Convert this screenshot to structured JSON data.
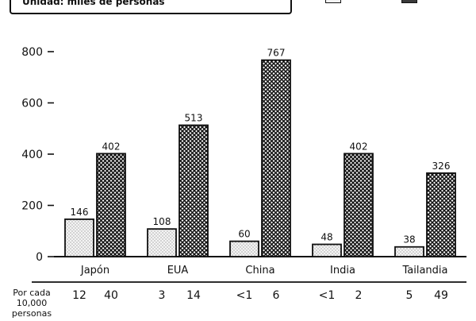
{
  "header": {
    "unit_label": "Unidad: miles de personas"
  },
  "colors": {
    "series_1_fill": "#f2f2f2",
    "series_2_fill": "#1a1a1a",
    "stroke": "#111111"
  },
  "chart_data": {
    "type": "bar",
    "categories": [
      "Japón",
      "EUA",
      "China",
      "India",
      "Tailandia"
    ],
    "series": [
      {
        "pattern": "dots",
        "values": [
          146,
          108,
          60,
          48,
          38
        ]
      },
      {
        "pattern": "crosshatch",
        "values": [
          402,
          513,
          767,
          402,
          326
        ]
      }
    ],
    "ylim": [
      0,
      800
    ],
    "yticks": [
      0,
      200,
      400,
      600,
      800
    ],
    "grid": false,
    "per_10000": {
      "label_lines": [
        "Por cada",
        "10,000",
        "personas"
      ],
      "values": [
        [
          "12",
          "40"
        ],
        [
          "3",
          "14"
        ],
        [
          "<1",
          "6"
        ],
        [
          "<1",
          "2"
        ],
        [
          "5",
          "49"
        ]
      ]
    }
  }
}
